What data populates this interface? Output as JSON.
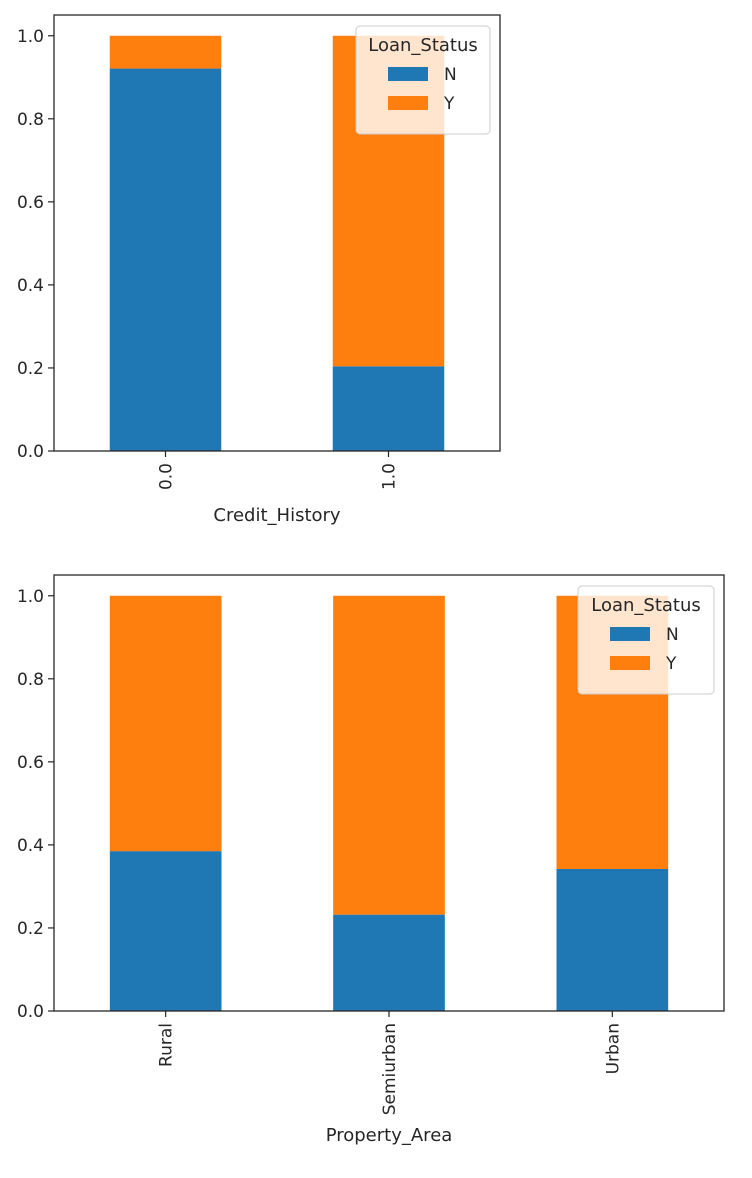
{
  "colors": {
    "N": "#1f77b4",
    "Y": "#ff7f0e",
    "axis": "#262626",
    "legend_border": "#cccccc"
  },
  "chart_data": [
    {
      "type": "bar",
      "stacked": true,
      "xlabel": "Credit_History",
      "categories": [
        "0.0",
        "1.0"
      ],
      "ylim": [
        0,
        1.05
      ],
      "yticks": [
        "0.0",
        "0.2",
        "0.4",
        "0.6",
        "0.8",
        "1.0"
      ],
      "legend": {
        "title": "Loan_Status",
        "placement": "upper right"
      },
      "series": [
        {
          "name": "N",
          "values": [
            0.921,
            0.204
          ]
        },
        {
          "name": "Y",
          "values": [
            0.079,
            0.796
          ]
        }
      ]
    },
    {
      "type": "bar",
      "stacked": true,
      "xlabel": "Property_Area",
      "categories": [
        "Rural",
        "Semiurban",
        "Urban"
      ],
      "ylim": [
        0,
        1.05
      ],
      "yticks": [
        "0.0",
        "0.2",
        "0.4",
        "0.6",
        "0.8",
        "1.0"
      ],
      "legend": {
        "title": "Loan_Status",
        "placement": "upper right"
      },
      "series": [
        {
          "name": "N",
          "values": [
            0.385,
            0.232,
            0.342
          ]
        },
        {
          "name": "Y",
          "values": [
            0.615,
            0.768,
            0.658
          ]
        }
      ]
    }
  ]
}
